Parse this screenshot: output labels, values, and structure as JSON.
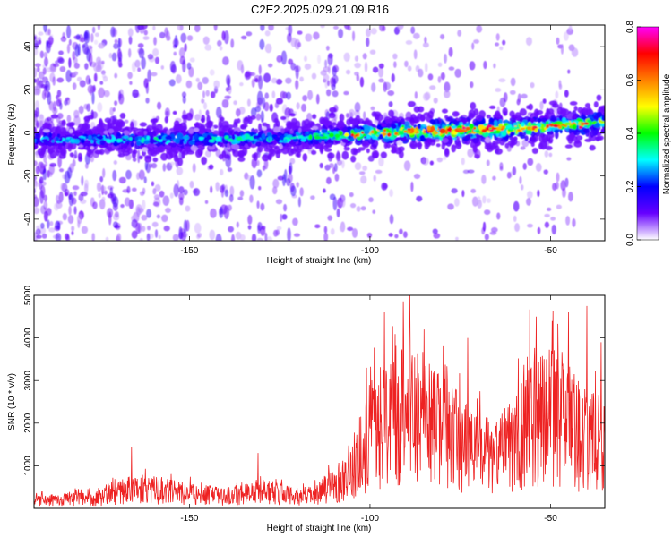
{
  "title": "C2E2.2025.029.21.09.R16",
  "chart_data": [
    {
      "type": "heatmap",
      "xlabel": "Height of straight line (km)",
      "ylabel": "Frequency (Hz)",
      "xlim": [
        -193,
        -35
      ],
      "ylim": [
        -50,
        50
      ],
      "xticks": [
        -150,
        -100,
        -50
      ],
      "yticks": [
        -40,
        -20,
        0,
        20,
        40
      ],
      "x_tick_labels": [
        "-150",
        "-100",
        "-50"
      ],
      "y_tick_labels": [
        "-40",
        "-20",
        "0",
        "20",
        "40"
      ],
      "colorbar": {
        "label": "Normalized spectral amplitude",
        "range": [
          0,
          0.8
        ],
        "ticks": [
          "0.0",
          "0.2",
          "0.4",
          "0.6",
          "0.8"
        ],
        "tick_values": [
          0,
          0.2,
          0.4,
          0.6,
          0.8
        ],
        "colormap": [
          "#ffffff",
          "#6600ff",
          "#0000ff",
          "#00ffff",
          "#00ff00",
          "#ffff00",
          "#ff8000",
          "#ff0000",
          "#ff00ff"
        ]
      },
      "ridge": {
        "x": [
          -193,
          -150,
          -120,
          -100,
          -80,
          -60,
          -50,
          -35
        ],
        "frequency": [
          -3,
          -3,
          -2,
          0,
          1,
          2,
          3,
          5
        ],
        "peak_amplitude": [
          0.3,
          0.35,
          0.35,
          0.55,
          0.75,
          0.65,
          0.6,
          0.55
        ]
      },
      "grid": false
    },
    {
      "type": "line",
      "xlabel": "Height of straight line (km)",
      "ylabel": "SNR (10 * v/v)",
      "xlim": [
        -193,
        -35
      ],
      "ylim": [
        0,
        5000
      ],
      "xticks": [
        -150,
        -100,
        -50
      ],
      "yticks": [
        1000,
        2000,
        3000,
        4000,
        5000
      ],
      "x_tick_labels": [
        "-150",
        "-100",
        "-50"
      ],
      "y_tick_labels": [
        "1000",
        "2000",
        "3000",
        "4000",
        "5000"
      ],
      "color": "#ee2222",
      "envelope": {
        "x": [
          -193,
          -175,
          -165,
          -150,
          -140,
          -130,
          -120,
          -115,
          -110,
          -105,
          -100,
          -95,
          -90,
          -85,
          -80,
          -75,
          -70,
          -65,
          -60,
          -55,
          -50,
          -45,
          -40,
          -35
        ],
        "y": [
          250,
          350,
          700,
          500,
          400,
          600,
          400,
          450,
          800,
          1200,
          2500,
          2800,
          3600,
          2900,
          2800,
          2200,
          1900,
          1700,
          2200,
          3400,
          3200,
          2800,
          2300,
          2200
        ]
      },
      "peaks": [
        {
          "x": -166,
          "y": 1450
        },
        {
          "x": -131,
          "y": 1300
        },
        {
          "x": -101,
          "y": 3300
        },
        {
          "x": -96,
          "y": 4600
        },
        {
          "x": -89,
          "y": 5000
        },
        {
          "x": -85,
          "y": 4200
        },
        {
          "x": -73,
          "y": 4000
        },
        {
          "x": -54,
          "y": 4500
        },
        {
          "x": -45,
          "y": 4600
        },
        {
          "x": -40,
          "y": 4750
        },
        {
          "x": -36,
          "y": 3900
        }
      ],
      "grid": false
    }
  ]
}
